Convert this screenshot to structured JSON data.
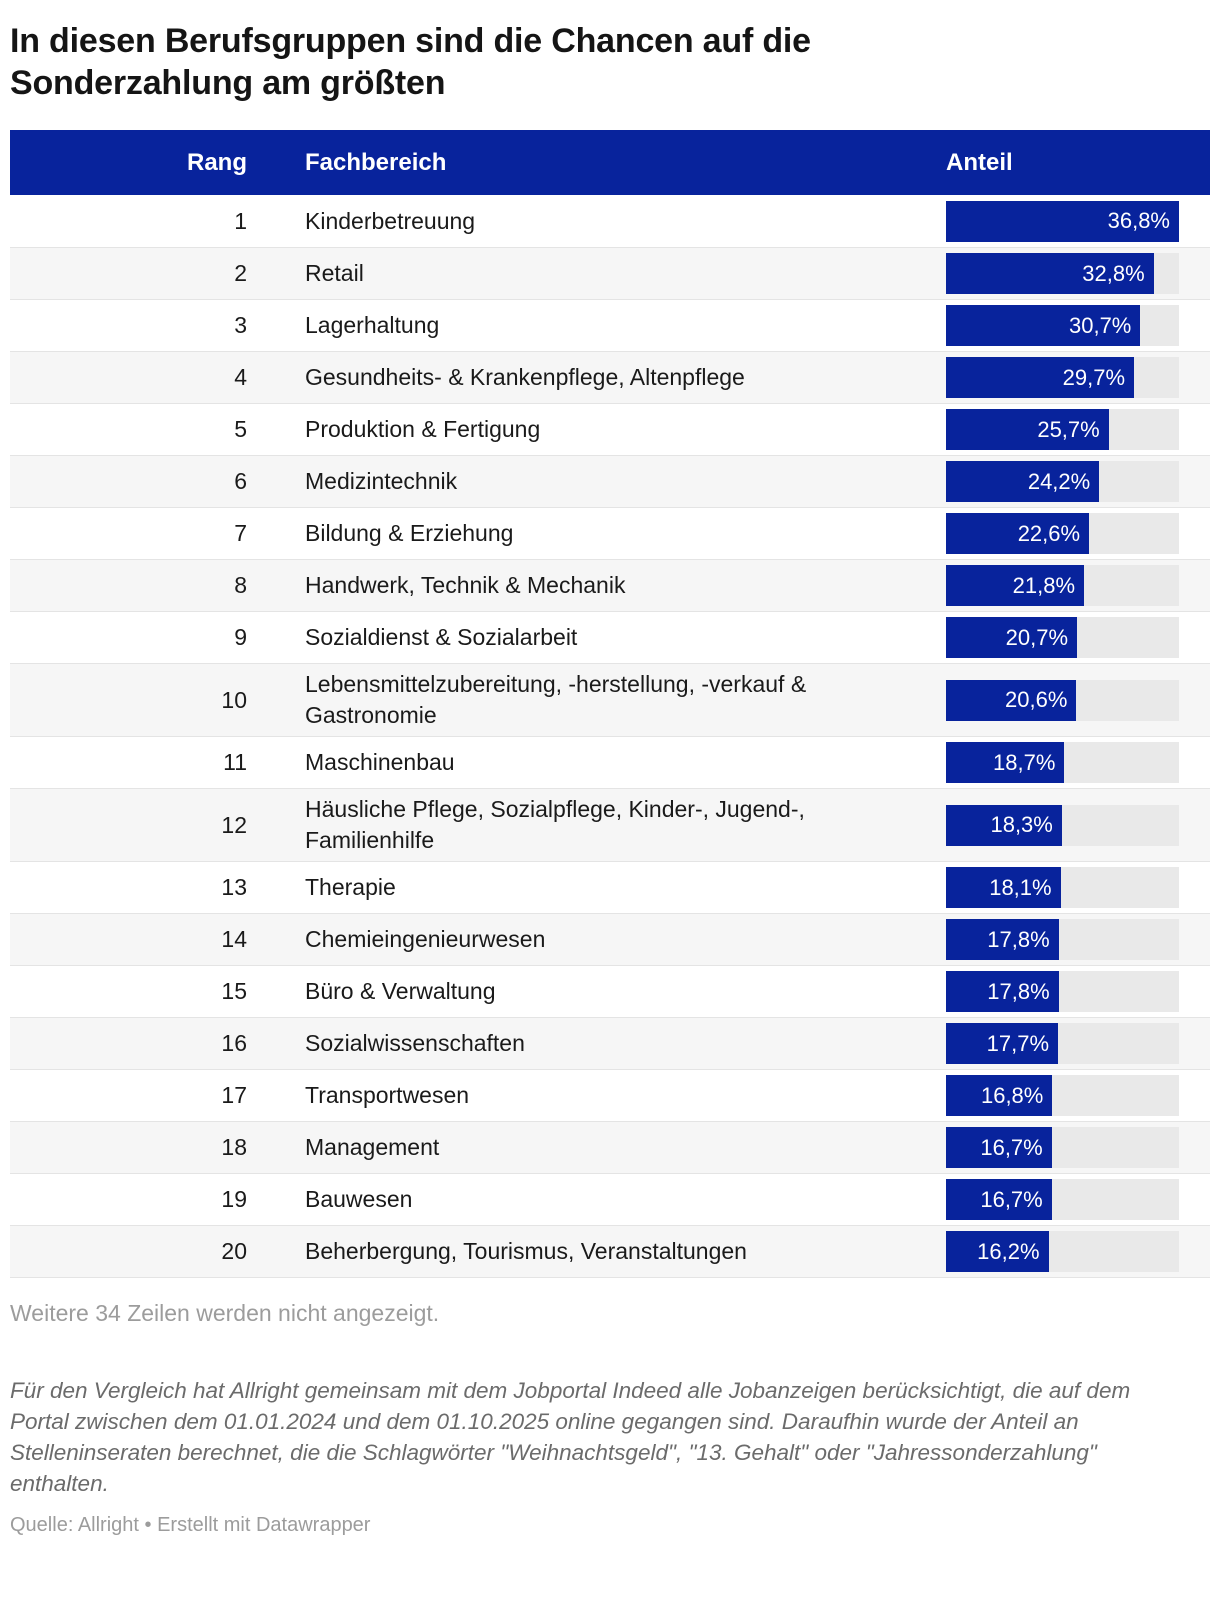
{
  "title": "In diesen Berufsgruppen sind die Chancen auf die Sonderzahlung am größten",
  "colors": {
    "accent": "#08239c",
    "bar_track": "#e9e9e9",
    "row_alt": "#f6f6f6"
  },
  "table": {
    "columns": {
      "rank": "Rang",
      "field": "Fachbereich",
      "share": "Anteil"
    },
    "bar_max": 36.8,
    "rows": [
      {
        "rank": "1",
        "label": "Kinderbetreuung",
        "value": 36.8,
        "value_label": "36,8%"
      },
      {
        "rank": "2",
        "label": "Retail",
        "value": 32.8,
        "value_label": "32,8%"
      },
      {
        "rank": "3",
        "label": "Lagerhaltung",
        "value": 30.7,
        "value_label": "30,7%"
      },
      {
        "rank": "4",
        "label": "Gesundheits- & Krankenpflege, Altenpflege",
        "value": 29.7,
        "value_label": "29,7%"
      },
      {
        "rank": "5",
        "label": "Produktion & Fertigung",
        "value": 25.7,
        "value_label": "25,7%"
      },
      {
        "rank": "6",
        "label": "Medizintechnik",
        "value": 24.2,
        "value_label": "24,2%"
      },
      {
        "rank": "7",
        "label": "Bildung & Erziehung",
        "value": 22.6,
        "value_label": "22,6%"
      },
      {
        "rank": "8",
        "label": "Handwerk, Technik & Mechanik",
        "value": 21.8,
        "value_label": "21,8%"
      },
      {
        "rank": "9",
        "label": "Sozialdienst & Sozialarbeit",
        "value": 20.7,
        "value_label": "20,7%"
      },
      {
        "rank": "10",
        "label": "Lebensmittelzubereitung, -herstellung, -verkauf & Gastronomie",
        "value": 20.6,
        "value_label": "20,6%"
      },
      {
        "rank": "11",
        "label": "Maschinenbau",
        "value": 18.7,
        "value_label": "18,7%"
      },
      {
        "rank": "12",
        "label": "Häusliche Pflege, Sozialpflege, Kinder-, Jugend-, Familienhilfe",
        "value": 18.3,
        "value_label": "18,3%"
      },
      {
        "rank": "13",
        "label": "Therapie",
        "value": 18.1,
        "value_label": "18,1%"
      },
      {
        "rank": "14",
        "label": "Chemieingenieurwesen",
        "value": 17.8,
        "value_label": "17,8%"
      },
      {
        "rank": "15",
        "label": "Büro & Verwaltung",
        "value": 17.8,
        "value_label": "17,8%"
      },
      {
        "rank": "16",
        "label": "Sozialwissenschaften",
        "value": 17.7,
        "value_label": "17,7%"
      },
      {
        "rank": "17",
        "label": "Transportwesen",
        "value": 16.8,
        "value_label": "16,8%"
      },
      {
        "rank": "18",
        "label": "Management",
        "value": 16.7,
        "value_label": "16,7%"
      },
      {
        "rank": "19",
        "label": "Bauwesen",
        "value": 16.7,
        "value_label": "16,7%"
      },
      {
        "rank": "20",
        "label": "Beherbergung, Tourismus, Veranstaltungen",
        "value": 16.2,
        "value_label": "16,2%"
      }
    ]
  },
  "notes": {
    "hidden_rows": "Weitere 34 Zeilen werden nicht angezeigt.",
    "methodology": "Für den Vergleich hat Allright gemeinsam mit dem Jobportal Indeed alle Jobanzeigen berücksichtigt, die auf dem Portal zwischen dem 01.01.2024 und dem 01.10.2025 online gegangen sind. Daraufhin wurde der Anteil an Stelleninseraten berechnet, die die Schlagwörter \"Weihnachtsgeld\", \"13. Gehalt\" oder \"Jahressonderzahlung\" enthalten.",
    "source": "Quelle: Allright • Erstellt mit Datawrapper"
  },
  "chart_data": {
    "type": "bar",
    "orientation": "horizontal",
    "title": "In diesen Berufsgruppen sind die Chancen auf die Sonderzahlung am größten",
    "categories": [
      "Kinderbetreuung",
      "Retail",
      "Lagerhaltung",
      "Gesundheits- & Krankenpflege, Altenpflege",
      "Produktion & Fertigung",
      "Medizintechnik",
      "Bildung & Erziehung",
      "Handwerk, Technik & Mechanik",
      "Sozialdienst & Sozialarbeit",
      "Lebensmittelzubereitung, -herstellung, -verkauf & Gastronomie",
      "Maschinenbau",
      "Häusliche Pflege, Sozialpflege, Kinder-, Jugend-, Familienhilfe",
      "Therapie",
      "Chemieingenieurwesen",
      "Büro & Verwaltung",
      "Sozialwissenschaften",
      "Transportwesen",
      "Management",
      "Bauwesen",
      "Beherbergung, Tourismus, Veranstaltungen"
    ],
    "ranks": [
      1,
      2,
      3,
      4,
      5,
      6,
      7,
      8,
      9,
      10,
      11,
      12,
      13,
      14,
      15,
      16,
      17,
      18,
      19,
      20
    ],
    "values": [
      36.8,
      32.8,
      30.7,
      29.7,
      25.7,
      24.2,
      22.6,
      21.8,
      20.7,
      20.6,
      18.7,
      18.3,
      18.1,
      17.8,
      17.8,
      17.7,
      16.8,
      16.7,
      16.7,
      16.2
    ],
    "value_unit": "%",
    "decimal_separator": ",",
    "xlabel": "Anteil",
    "ylabel": "Fachbereich",
    "xlim": [
      0,
      36.8
    ],
    "grid": false,
    "legend_position": "none",
    "data_labels": "inside-end"
  }
}
